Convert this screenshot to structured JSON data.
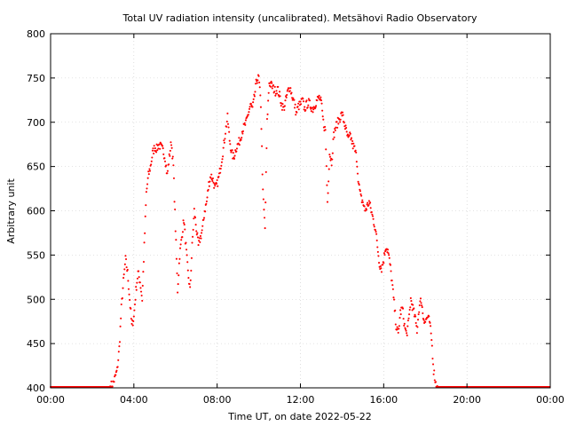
{
  "chart_data": {
    "type": "scatter",
    "title": "Total UV radiation intensity (uncalibrated). Metsähovi Radio Observatory",
    "xlabel": "Time UT, on date 2022-05-22",
    "ylabel": "Arbitrary unit",
    "xlim": [
      "00:00",
      "24:00"
    ],
    "ylim": [
      400,
      800
    ],
    "x_ticks": [
      "00:00",
      "04:00",
      "08:00",
      "12:00",
      "16:00",
      "20:00",
      "00:00"
    ],
    "y_ticks": [
      400,
      450,
      500,
      550,
      600,
      650,
      700,
      750,
      800
    ],
    "grid": true,
    "marker_color": "#ff0000",
    "series": [
      {
        "points": [
          [
            "00:00",
            401
          ],
          [
            "01:00",
            401
          ],
          [
            "02:00",
            401
          ],
          [
            "02:50",
            401
          ],
          [
            "03:00",
            405
          ],
          [
            "03:06",
            412
          ],
          [
            "03:12",
            420
          ],
          [
            "03:18",
            445
          ],
          [
            "03:24",
            490
          ],
          [
            "03:30",
            520
          ],
          [
            "03:36",
            545
          ],
          [
            "03:42",
            530
          ],
          [
            "03:48",
            500
          ],
          [
            "03:54",
            470
          ],
          [
            "04:00",
            480
          ],
          [
            "04:06",
            510
          ],
          [
            "04:12",
            530
          ],
          [
            "04:18",
            520
          ],
          [
            "04:24",
            500
          ],
          [
            "04:30",
            560
          ],
          [
            "04:36",
            620
          ],
          [
            "04:42",
            640
          ],
          [
            "04:48",
            650
          ],
          [
            "04:54",
            665
          ],
          [
            "05:00",
            672
          ],
          [
            "05:06",
            670
          ],
          [
            "05:12",
            675
          ],
          [
            "05:18",
            672
          ],
          [
            "05:24",
            668
          ],
          [
            "05:30",
            660
          ],
          [
            "05:36",
            640
          ],
          [
            "05:42",
            660
          ],
          [
            "05:48",
            678
          ],
          [
            "05:54",
            650
          ],
          [
            "06:00",
            580
          ],
          [
            "06:06",
            510
          ],
          [
            "06:12",
            550
          ],
          [
            "06:18",
            570
          ],
          [
            "06:24",
            590
          ],
          [
            "06:30",
            560
          ],
          [
            "06:36",
            530
          ],
          [
            "06:42",
            510
          ],
          [
            "06:48",
            560
          ],
          [
            "06:54",
            600
          ],
          [
            "07:00",
            580
          ],
          [
            "07:06",
            560
          ],
          [
            "07:12",
            570
          ],
          [
            "07:18",
            580
          ],
          [
            "07:24",
            600
          ],
          [
            "07:30",
            610
          ],
          [
            "07:36",
            630
          ],
          [
            "07:42",
            640
          ],
          [
            "07:48",
            635
          ],
          [
            "07:54",
            625
          ],
          [
            "08:00",
            630
          ],
          [
            "08:06",
            640
          ],
          [
            "08:12",
            655
          ],
          [
            "08:18",
            670
          ],
          [
            "08:24",
            690
          ],
          [
            "08:30",
            705
          ],
          [
            "08:36",
            680
          ],
          [
            "08:42",
            665
          ],
          [
            "08:48",
            660
          ],
          [
            "08:54",
            670
          ],
          [
            "09:00",
            675
          ],
          [
            "09:06",
            680
          ],
          [
            "09:12",
            690
          ],
          [
            "09:18",
            695
          ],
          [
            "09:24",
            700
          ],
          [
            "09:30",
            710
          ],
          [
            "09:36",
            720
          ],
          [
            "09:42",
            715
          ],
          [
            "09:48",
            730
          ],
          [
            "09:54",
            748
          ],
          [
            "10:00",
            750
          ],
          [
            "10:06",
            720
          ],
          [
            "10:12",
            620
          ],
          [
            "10:18",
            580
          ],
          [
            "10:24",
            700
          ],
          [
            "10:30",
            745
          ],
          [
            "10:36",
            742
          ],
          [
            "10:42",
            738
          ],
          [
            "10:48",
            735
          ],
          [
            "10:54",
            738
          ],
          [
            "11:00",
            730
          ],
          [
            "11:06",
            720
          ],
          [
            "11:12",
            715
          ],
          [
            "11:18",
            725
          ],
          [
            "11:24",
            735
          ],
          [
            "11:30",
            740
          ],
          [
            "11:36",
            730
          ],
          [
            "11:42",
            722
          ],
          [
            "11:48",
            710
          ],
          [
            "11:54",
            718
          ],
          [
            "12:00",
            720
          ],
          [
            "12:06",
            725
          ],
          [
            "12:12",
            715
          ],
          [
            "12:18",
            720
          ],
          [
            "12:24",
            722
          ],
          [
            "12:30",
            718
          ],
          [
            "12:36",
            715
          ],
          [
            "12:42",
            720
          ],
          [
            "12:48",
            725
          ],
          [
            "12:54",
            728
          ],
          [
            "13:00",
            722
          ],
          [
            "13:06",
            700
          ],
          [
            "13:12",
            690
          ],
          [
            "13:18",
            610
          ],
          [
            "13:24",
            665
          ],
          [
            "13:30",
            655
          ],
          [
            "13:36",
            685
          ],
          [
            "13:42",
            695
          ],
          [
            "13:48",
            700
          ],
          [
            "13:54",
            705
          ],
          [
            "14:00",
            710
          ],
          [
            "14:06",
            700
          ],
          [
            "14:12",
            690
          ],
          [
            "14:18",
            680
          ],
          [
            "14:24",
            685
          ],
          [
            "14:30",
            675
          ],
          [
            "14:36",
            670
          ],
          [
            "14:42",
            660
          ],
          [
            "14:48",
            630
          ],
          [
            "14:54",
            615
          ],
          [
            "15:00",
            610
          ],
          [
            "15:06",
            600
          ],
          [
            "15:12",
            605
          ],
          [
            "15:18",
            610
          ],
          [
            "15:24",
            600
          ],
          [
            "15:30",
            590
          ],
          [
            "15:36",
            580
          ],
          [
            "15:42",
            560
          ],
          [
            "15:48",
            540
          ],
          [
            "15:54",
            535
          ],
          [
            "16:00",
            545
          ],
          [
            "16:06",
            560
          ],
          [
            "16:12",
            555
          ],
          [
            "16:18",
            540
          ],
          [
            "16:24",
            520
          ],
          [
            "16:30",
            495
          ],
          [
            "16:36",
            470
          ],
          [
            "16:42",
            460
          ],
          [
            "16:48",
            485
          ],
          [
            "16:54",
            490
          ],
          [
            "17:00",
            470
          ],
          [
            "17:06",
            460
          ],
          [
            "17:12",
            475
          ],
          [
            "17:18",
            500
          ],
          [
            "17:24",
            490
          ],
          [
            "17:30",
            480
          ],
          [
            "17:36",
            465
          ],
          [
            "17:42",
            490
          ],
          [
            "17:48",
            500
          ],
          [
            "17:54",
            480
          ],
          [
            "18:00",
            475
          ],
          [
            "18:06",
            480
          ],
          [
            "18:12",
            475
          ],
          [
            "18:18",
            455
          ],
          [
            "18:24",
            420
          ],
          [
            "18:30",
            405
          ],
          [
            "18:36",
            401
          ],
          [
            "19:00",
            401
          ],
          [
            "20:00",
            401
          ],
          [
            "21:00",
            401
          ],
          [
            "22:00",
            401
          ],
          [
            "23:00",
            401
          ],
          [
            "23:59",
            401
          ]
        ]
      }
    ]
  }
}
